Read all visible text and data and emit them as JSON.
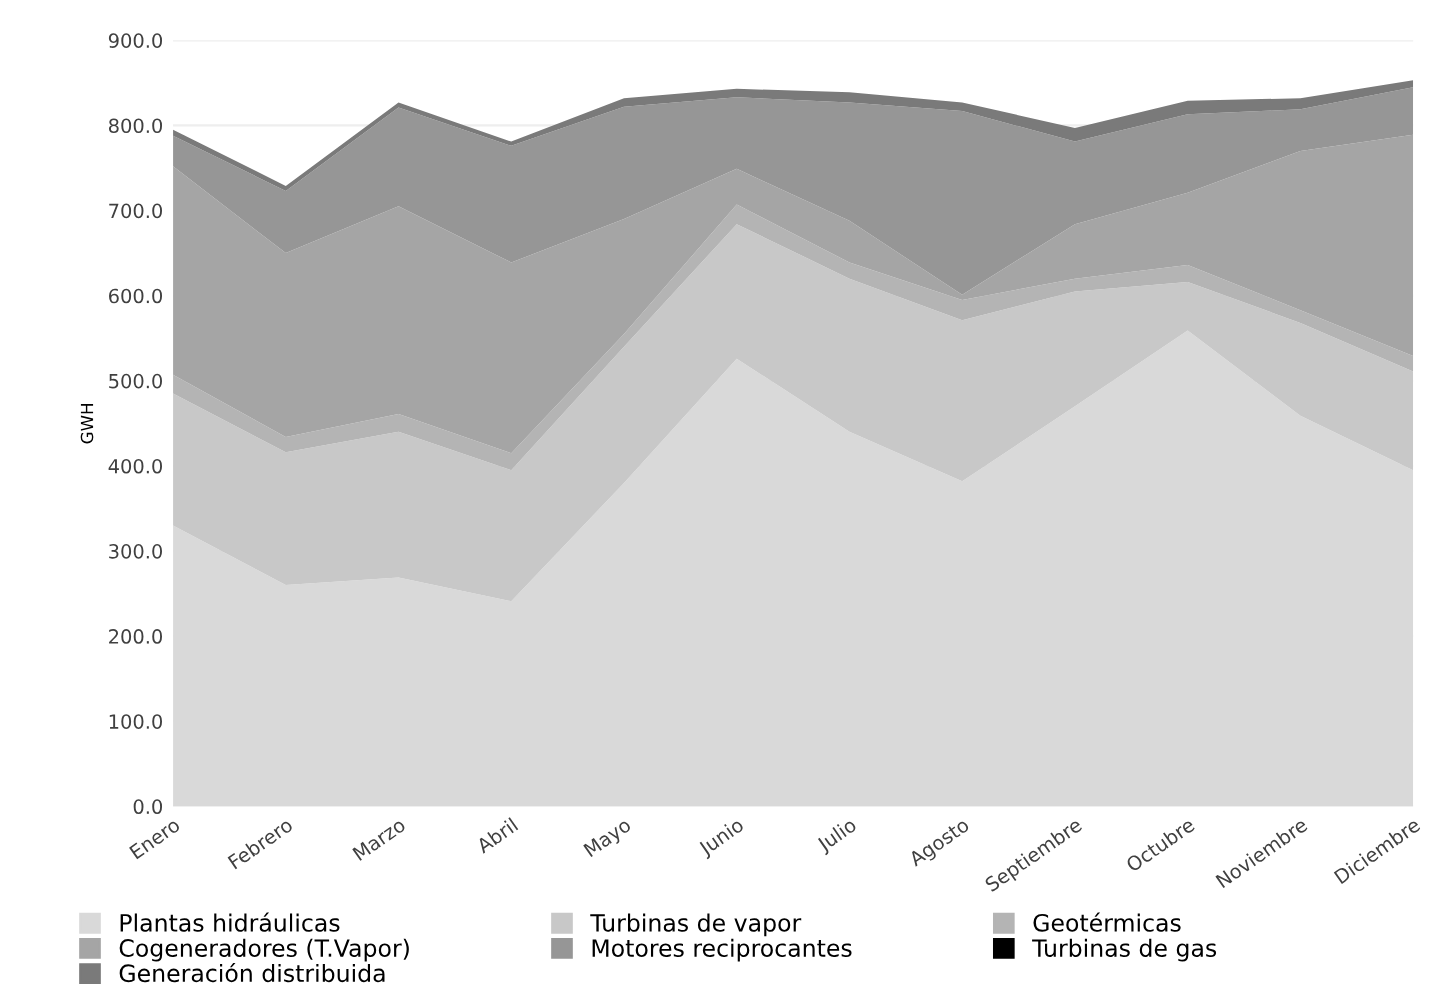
{
  "chart_data": {
    "type": "area",
    "stacked": true,
    "ylabel": "GWH",
    "categories": [
      "Enero",
      "Febrero",
      "Marzo",
      "Abril",
      "Mayo",
      "Junio",
      "Julio",
      "Agosto",
      "Septiembre",
      "Octubre",
      "Noviembre",
      "Diciembre"
    ],
    "series": [
      {
        "name": "Plantas hidráulicas",
        "color": "#d9d9d9",
        "values": [
          330,
          260,
          269,
          241,
          380,
          526,
          440,
          382,
          470,
          559,
          459,
          395
        ]
      },
      {
        "name": "Turbinas de vapor",
        "color": "#c8c8c8",
        "values": [
          155,
          156,
          171,
          154,
          160,
          158,
          180,
          189,
          135,
          57,
          109,
          116
        ]
      },
      {
        "name": "Geotérmicas",
        "color": "#b4b4b4",
        "values": [
          22,
          18,
          21,
          20,
          15,
          23,
          19,
          24,
          15,
          20,
          15,
          18
        ]
      },
      {
        "name": "Cogeneradores (T.Vapor)",
        "color": "#a5a5a5",
        "values": [
          245,
          216,
          244,
          224,
          135,
          42,
          49,
          6,
          64,
          85,
          187,
          260
        ]
      },
      {
        "name": "Motores reciprocantes",
        "color": "#969696",
        "values": [
          36,
          73,
          116,
          137,
          132,
          84,
          139,
          216,
          97,
          92,
          49,
          56
        ]
      },
      {
        "name": "Turbinas de gas",
        "color": "#000000",
        "values": [
          null,
          null,
          null,
          null,
          null,
          null,
          null,
          null,
          null,
          null,
          null,
          null
        ]
      },
      {
        "name": "Generación distribuida",
        "color": "#7a7a7a",
        "values": [
          7,
          6,
          6,
          5,
          10,
          10,
          12,
          10,
          16,
          16,
          13,
          8
        ]
      }
    ],
    "ylim": [
      0,
      900
    ],
    "yticks": [
      {
        "value": 0,
        "label": "0.0"
      },
      {
        "value": 100,
        "label": "100.0"
      },
      {
        "value": 200,
        "label": "200.0"
      },
      {
        "value": 300,
        "label": "300.0"
      },
      {
        "value": 400,
        "label": "400.0"
      },
      {
        "value": 500,
        "label": "500.0"
      },
      {
        "value": 600,
        "label": "600.0"
      },
      {
        "value": 700,
        "label": "700.0"
      },
      {
        "value": 800,
        "label": "800.0"
      },
      {
        "value": 900,
        "label": "900.0"
      }
    ],
    "grid": "y",
    "legend": "bottom"
  }
}
